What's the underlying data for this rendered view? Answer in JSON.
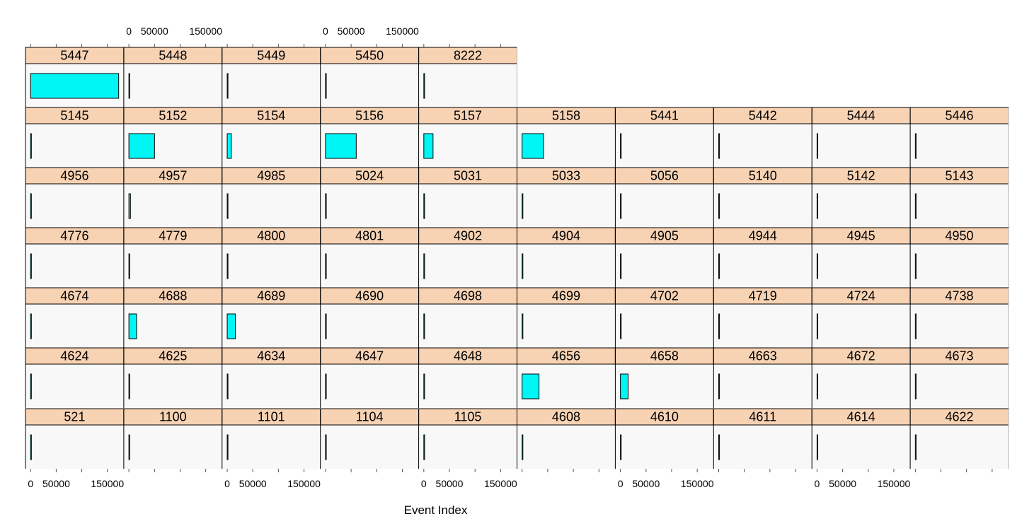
{
  "chart_data": {
    "type": "bar",
    "layout": "trellis",
    "xlabel": "Event Index",
    "xlim": [
      -10000,
      182000
    ],
    "x_ticks": [
      0,
      50000,
      150000
    ],
    "x_tick_labels": [
      "0",
      "50000",
      "150000"
    ],
    "colors": {
      "bar_fill": "#00f5f5",
      "bar_stroke": "#000000",
      "strip_fill": "#f7d2b3",
      "panel_bg": "#f9f8f8",
      "panel_border": "#000000"
    },
    "rows": [
      {
        "panels": [
          {
            "label": "5447",
            "value": 172000
          },
          {
            "label": "5448",
            "value": 1500
          },
          {
            "label": "5449",
            "value": 1500
          },
          {
            "label": "5450",
            "value": 1500
          },
          {
            "label": "8222",
            "value": 1500
          }
        ]
      },
      {
        "panels": [
          {
            "label": "5145",
            "value": 1500
          },
          {
            "label": "5152",
            "value": 50000
          },
          {
            "label": "5154",
            "value": 8000
          },
          {
            "label": "5156",
            "value": 60000
          },
          {
            "label": "5157",
            "value": 18000
          },
          {
            "label": "5158",
            "value": 42000
          },
          {
            "label": "5441",
            "value": 1500
          },
          {
            "label": "5442",
            "value": 1500
          },
          {
            "label": "5444",
            "value": 1500
          },
          {
            "label": "5446",
            "value": 1500
          }
        ]
      },
      {
        "panels": [
          {
            "label": "4956",
            "value": 1500
          },
          {
            "label": "4957",
            "value": 3000
          },
          {
            "label": "4985",
            "value": 1500
          },
          {
            "label": "5024",
            "value": 1500
          },
          {
            "label": "5031",
            "value": 1500
          },
          {
            "label": "5033",
            "value": 1500
          },
          {
            "label": "5056",
            "value": 1500
          },
          {
            "label": "5140",
            "value": 1500
          },
          {
            "label": "5142",
            "value": 1500
          },
          {
            "label": "5143",
            "value": 1500
          }
        ]
      },
      {
        "panels": [
          {
            "label": "4776",
            "value": 1500
          },
          {
            "label": "4779",
            "value": 1500
          },
          {
            "label": "4800",
            "value": 1500
          },
          {
            "label": "4801",
            "value": 1500
          },
          {
            "label": "4902",
            "value": 1500
          },
          {
            "label": "4904",
            "value": 1500
          },
          {
            "label": "4905",
            "value": 1500
          },
          {
            "label": "4944",
            "value": 1500
          },
          {
            "label": "4945",
            "value": 1500
          },
          {
            "label": "4950",
            "value": 1500
          }
        ]
      },
      {
        "panels": [
          {
            "label": "4674",
            "value": 1500
          },
          {
            "label": "4688",
            "value": 15000
          },
          {
            "label": "4689",
            "value": 16000
          },
          {
            "label": "4690",
            "value": 1500
          },
          {
            "label": "4698",
            "value": 1500
          },
          {
            "label": "4699",
            "value": 1500
          },
          {
            "label": "4702",
            "value": 1500
          },
          {
            "label": "4719",
            "value": 1500
          },
          {
            "label": "4724",
            "value": 1500
          },
          {
            "label": "4738",
            "value": 1500
          }
        ]
      },
      {
        "panels": [
          {
            "label": "4624",
            "value": 1500
          },
          {
            "label": "4625",
            "value": 1500
          },
          {
            "label": "4634",
            "value": 1500
          },
          {
            "label": "4647",
            "value": 1500
          },
          {
            "label": "4648",
            "value": 1500
          },
          {
            "label": "4656",
            "value": 33000
          },
          {
            "label": "4658",
            "value": 15000
          },
          {
            "label": "4663",
            "value": 1500
          },
          {
            "label": "4672",
            "value": 1500
          },
          {
            "label": "4673",
            "value": 1500
          }
        ]
      },
      {
        "panels": [
          {
            "label": "521",
            "value": 1500
          },
          {
            "label": "1100",
            "value": 1500
          },
          {
            "label": "1101",
            "value": 1500
          },
          {
            "label": "1104",
            "value": 1500
          },
          {
            "label": "1105",
            "value": 1500
          },
          {
            "label": "4608",
            "value": 1500
          },
          {
            "label": "4610",
            "value": 1500
          },
          {
            "label": "4611",
            "value": 1500
          },
          {
            "label": "4614",
            "value": 1500
          },
          {
            "label": "4622",
            "value": 1500
          }
        ]
      }
    ]
  }
}
